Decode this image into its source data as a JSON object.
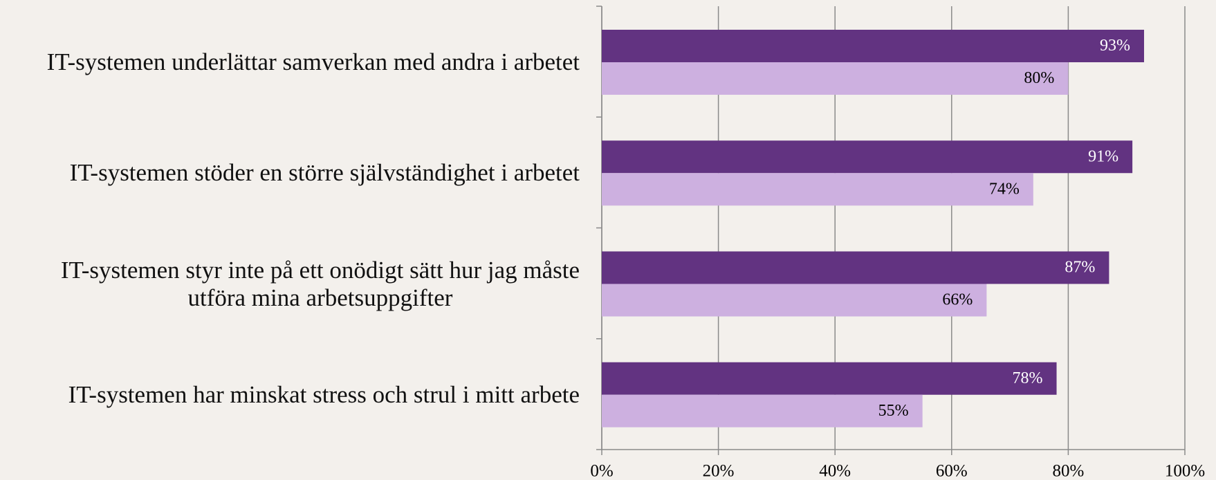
{
  "chart_data": {
    "type": "bar",
    "orientation": "horizontal",
    "categories": [
      "IT-systemen underlättar samverkan med andra i arbetet",
      "IT-systemen stöder en större självständighet i arbetet",
      "IT-systemen styr inte på ett onödigt sätt hur jag måste\nutföra mina arbetsuppgifter",
      "IT-systemen har minskat stress och strul i mitt arbete"
    ],
    "series": [
      {
        "color": "#623381",
        "label_color": "#ffffff",
        "values": [
          93,
          91,
          87,
          78
        ],
        "value_labels": [
          "93%",
          "91%",
          "87%",
          "78%"
        ]
      },
      {
        "color": "#cdb0e0",
        "label_color": "#000000",
        "values": [
          80,
          74,
          66,
          55
        ],
        "value_labels": [
          "80%",
          "74%",
          "66%",
          "55%"
        ]
      }
    ],
    "xlim": [
      0,
      100
    ],
    "xticks": [
      {
        "value": 0,
        "label": "0%"
      },
      {
        "value": 20,
        "label": "20%"
      },
      {
        "value": 40,
        "label": "40%"
      },
      {
        "value": 60,
        "label": "60%"
      },
      {
        "value": 80,
        "label": "80%"
      },
      {
        "value": 100,
        "label": "100%"
      }
    ],
    "grid": true
  }
}
